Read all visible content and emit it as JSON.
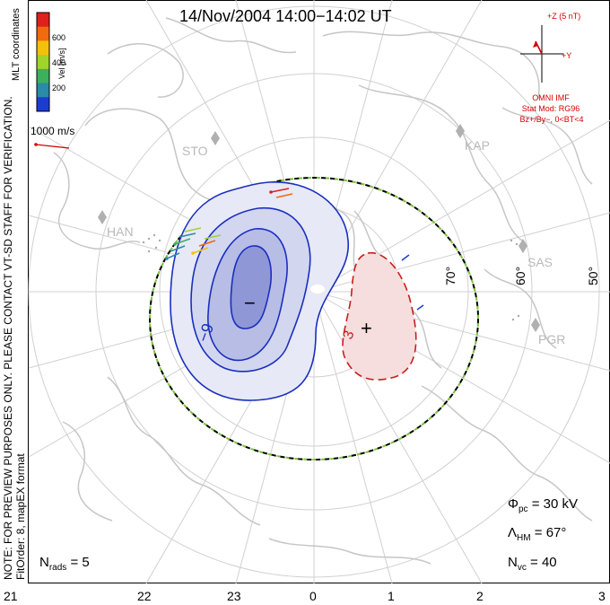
{
  "title": "14/Nov/2004  14:00−14:02  UT",
  "side_notes": {
    "preview": "NOTE: FOR PREVIEW PURPOSES ONLY. PLEASE CONTACT VT-SD STAFF FOR VERIFICATION.",
    "fit": "FitOrder: 8, mapEX format",
    "coords": "MLT coordinates"
  },
  "colorbar": {
    "label": "Vel [m/s]",
    "ticks": [
      "600",
      "400",
      "200"
    ],
    "colors": [
      "#e0201c",
      "#f06a10",
      "#f5c00a",
      "#a0d42c",
      "#3cb05c",
      "#2a8aa8",
      "#1c3cd0"
    ]
  },
  "velocity_scale": "1000 m/s",
  "imf": {
    "z_label": "+Z (5 nT)",
    "y_label": "+Y",
    "model_lines": [
      "OMNI IMF",
      "Stat Mod: RG96",
      "Bz+/By−, 0<BT<4"
    ]
  },
  "stations": [
    "STO",
    "HAN",
    "KAP",
    "SAS",
    "PGR"
  ],
  "latitude_labels": [
    "70°",
    "60°",
    "50°"
  ],
  "mlt_labels": [
    "21",
    "22",
    "23",
    "0",
    "1",
    "2",
    "3"
  ],
  "contours": {
    "negative_label": "−9",
    "positive_label": "3",
    "min_marker": "−",
    "max_marker": "+"
  },
  "stats": {
    "n_rads_sym": "N",
    "n_rads_sub": "rads",
    "n_rads_val": "= 5",
    "phi_sym": "Φ",
    "phi_sub": "pc",
    "phi_val": "= 30 kV",
    "lambda_sym": "Λ",
    "lambda_sub": "HM",
    "lambda_val": "= 67°",
    "nvc_sym": "N",
    "nvc_sub": "vc",
    "nvc_val": "= 40"
  },
  "colors": {
    "negative": "#1a2fbf",
    "positive": "#c81e1e",
    "boundary": "#7cc33a",
    "grid": "#cfcfcf",
    "coast": "#c8c8c8"
  }
}
